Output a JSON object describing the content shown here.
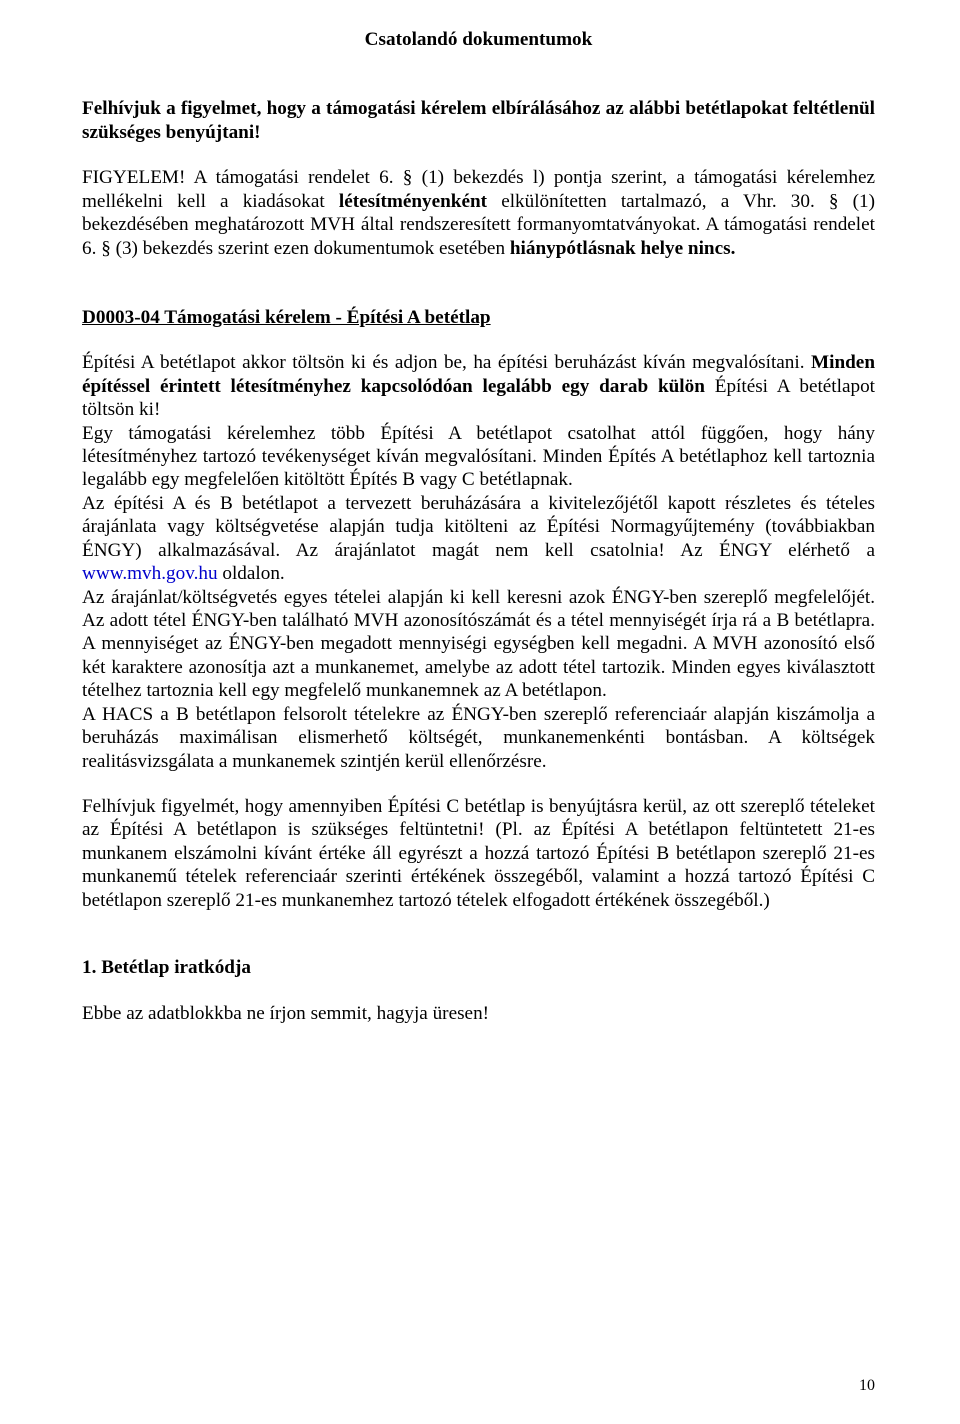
{
  "colors": {
    "background": "#ffffff",
    "text": "#000000",
    "link": "#0000cc"
  },
  "typography": {
    "body_fontsize_pt": 14,
    "font_family": "Times New Roman"
  },
  "page_number": "10",
  "title": "Csatolandó dokumentumok",
  "p1_a": "Felhívjuk a figyelmet, hogy a támogatási kérelem elbírálásához az alábbi betétlapokat feltétlenül szükséges benyújtani!",
  "p2_a": "FIGYELEM! A támogatási rendelet 6. § (1) bekezdés l) pontja szerint, a támogatási kérelemhez mellékelni kell a kiadásokat ",
  "p2_b": "létesítményenként",
  "p2_c": " elkülönítetten tartalmazó, a Vhr. 30. § (1) bekezdésében meghatározott MVH által rendszeresített formanyomtatványokat. A támogatási rendelet 6. § (3) bekezdés szerint ezen dokumentumok esetében ",
  "p2_d": "hiánypótlásnak helye nincs.",
  "subheading": "D0003-04 Támogatási kérelem - Építési A betétlap",
  "p3_a": "Építési A betétlapot akkor töltsön ki és adjon be, ha építési beruházást kíván megvalósítani. ",
  "p3_b": "Minden építéssel érintett létesítményhez kapcsolódóan legalább egy darab külön ",
  "p3_c": "Építési A betétlapot töltsön ki!",
  "p3_d": "Egy támogatási kérelemhez több Építési A betétlapot csatolhat attól függően, hogy hány létesítményhez tartozó tevékenységet kíván megvalósítani. Minden Építés A betétlaphoz kell tartoznia legalább egy megfelelően kitöltött Építés B vagy C betétlapnak.",
  "p3_e": "Az építési A és B betétlapot a tervezett beruházására a kivitelezőjétől kapott részletes és tételes árajánlata vagy költségvetése alapján tudja kitölteni az Építési Normagyűjtemény (továbbiakban ÉNGY) alkalmazásával. Az árajánlatot magát nem kell csatolnia! Az ÉNGY elérhető a ",
  "p3_link": "www.mvh.gov.hu",
  "p3_f": " oldalon.",
  "p3_g": "Az árajánlat/költségvetés egyes tételei alapján ki kell keresni azok ÉNGY-ben szereplő megfelelőjét. Az adott tétel ÉNGY-ben található MVH azonosítószámát és a tétel mennyiségét írja rá a B betétlapra. A mennyiséget az ÉNGY-ben megadott mennyiségi egységben kell megadni. A MVH azonosító első két karaktere azonosítja azt a munkanemet, amelybe az adott tétel tartozik. Minden egyes kiválasztott tételhez tartoznia kell egy megfelelő munkanemnek az A betétlapon.",
  "p3_h": "A HACS a B betétlapon felsorolt tételekre az ÉNGY-ben szereplő referenciaár alapján kiszámolja a beruházás maximálisan elismerhető költségét, munkanemenkénti bontásban. A költségek realitásvizsgálata a munkanemek szintjén kerül ellenőrzésre.",
  "p4_a": "Felhívjuk figyelmét, hogy amennyiben Építési C betétlap is benyújtásra kerül, az ott szereplő tételeket az Építési A betétlapon is szükséges feltüntetni! (Pl. az Építési A betétlapon feltüntetett 21-es munkanem elszámolni kívánt értéke áll egyrészt a hozzá tartozó Építési B betétlapon szereplő 21-es munkanemű tételek referenciaár szerinti értékének összegéből, valamint a hozzá tartozó Építési C betétlapon szereplő 21-es munkanemhez tartozó tételek elfogadott értékének összegéből.)",
  "section_heading": "1. Betétlap iratkódja",
  "p5": "Ebbe az adatblokkba ne írjon semmit, hagyja üresen!"
}
